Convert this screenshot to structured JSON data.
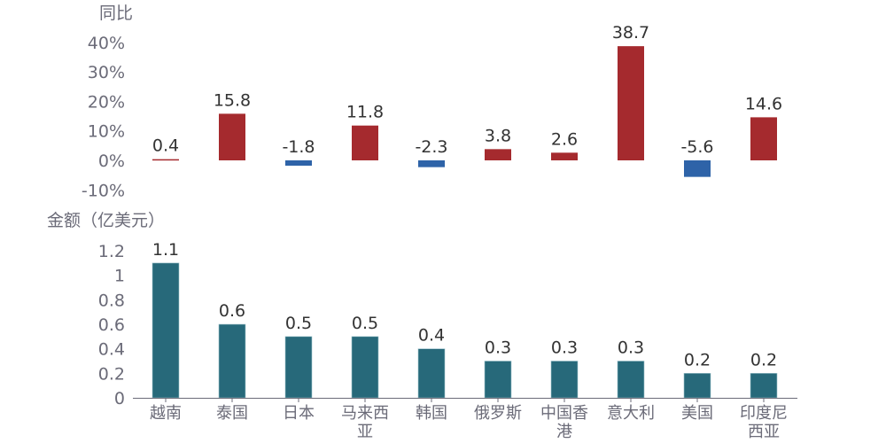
{
  "chart_data": [
    {
      "type": "bar",
      "ylabel": "同比",
      "categories": [
        "越南",
        "泰国",
        "日本",
        "马来西亚",
        "韩国",
        "俄罗斯",
        "中国香港",
        "意大利",
        "美国",
        "印度尼西亚"
      ],
      "values": [
        0.4,
        15.8,
        -1.8,
        11.8,
        -2.3,
        3.8,
        2.6,
        38.7,
        -5.6,
        14.6
      ],
      "data_labels": [
        "0.4",
        "15.8",
        "-1.8",
        "11.8",
        "-2.3",
        "3.8",
        "2.6",
        "38.7",
        "-5.6",
        "14.6"
      ],
      "yticks": [
        "-10%",
        "0%",
        "10%",
        "20%",
        "30%",
        "40%"
      ],
      "ytick_values": [
        -10,
        0,
        10,
        20,
        30,
        40
      ],
      "ylim": [
        -10,
        40
      ],
      "colors": {
        "positive": "#a52a2e",
        "negative": "#2e63a8"
      },
      "grid": false
    },
    {
      "type": "bar",
      "ylabel": "金额（亿美元）",
      "categories": [
        "越南",
        "泰国",
        "日本",
        "马来西亚",
        "韩国",
        "俄罗斯",
        "中国香港",
        "意大利",
        "美国",
        "印度尼西亚"
      ],
      "category_labels": [
        [
          "越南"
        ],
        [
          "泰国"
        ],
        [
          "日本"
        ],
        [
          "马来西",
          "亚"
        ],
        [
          "韩国"
        ],
        [
          "俄罗斯"
        ],
        [
          "中国香",
          "港"
        ],
        [
          "意大利"
        ],
        [
          "美国"
        ],
        [
          "印度尼",
          "西亚"
        ]
      ],
      "values": [
        1.1,
        0.6,
        0.5,
        0.5,
        0.4,
        0.3,
        0.3,
        0.3,
        0.2,
        0.2
      ],
      "data_labels": [
        "1.1",
        "0.6",
        "0.5",
        "0.5",
        "0.4",
        "0.3",
        "0.3",
        "0.3",
        "0.2",
        "0.2"
      ],
      "yticks": [
        "0",
        "0.2",
        "0.4",
        "0.6",
        "0.8",
        "1",
        "1.2"
      ],
      "ytick_values": [
        0,
        0.2,
        0.4,
        0.6,
        0.8,
        1,
        1.2
      ],
      "ylim": [
        0,
        1.2
      ],
      "colors": {
        "bar": "#27697a"
      },
      "grid": false
    }
  ]
}
